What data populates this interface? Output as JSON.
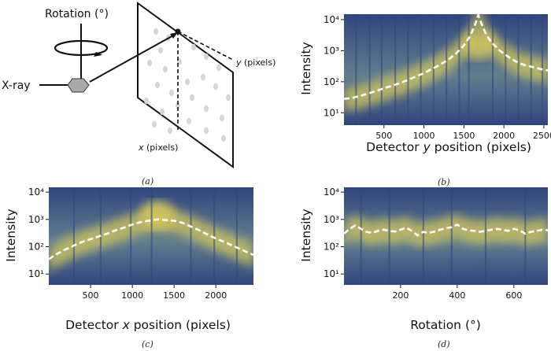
{
  "schematic": {
    "rotation_label": "Rotation (°)",
    "xray_label": "X-ray",
    "x_label": "x (pixels)",
    "y_label": "y (pixels)"
  },
  "captions": {
    "a": "(a)",
    "b": "(b)",
    "c": "(c)",
    "d": "(d)"
  },
  "colors": {
    "heat_low": "#1f3477",
    "heat_mid": "#5a7a8a",
    "heat_high": "#e8d44d",
    "trend_line": "#ffffff"
  },
  "chart_data": [
    {
      "id": "b",
      "type": "heatmap",
      "xlabel": "Detector y position (pixels)",
      "xlabel_parts": [
        "Detector ",
        "y",
        " position (pixels)"
      ],
      "ylabel": "Intensity",
      "yscale": "log",
      "xlim": [
        0,
        2550
      ],
      "ylim": [
        4,
        15000
      ],
      "xticks": [
        500,
        1000,
        1500,
        2000,
        2500
      ],
      "yticks": [
        {
          "v": 10,
          "label": "10¹"
        },
        {
          "v": 100,
          "label": "10²"
        },
        {
          "v": 1000,
          "label": "10³"
        },
        {
          "v": 10000,
          "label": "10⁴"
        }
      ],
      "series": [
        {
          "style": "dashed-white",
          "x": [
            0,
            100,
            250,
            400,
            550,
            700,
            850,
            1000,
            1150,
            1300,
            1400,
            1500,
            1580,
            1640,
            1680,
            1720,
            1780,
            1850,
            1950,
            2050,
            2150,
            2250,
            2350,
            2450,
            2550
          ],
          "y": [
            28,
            30,
            38,
            50,
            68,
            90,
            130,
            190,
            300,
            500,
            800,
            1500,
            3000,
            7000,
            14000,
            7500,
            3200,
            1800,
            1000,
            650,
            450,
            350,
            300,
            260,
            230
          ]
        }
      ],
      "dark_columns": [
        150,
        320,
        470,
        640,
        800,
        960,
        1120,
        1280,
        1440,
        1560,
        1860,
        2020,
        2180,
        2340,
        2480
      ]
    },
    {
      "id": "c",
      "type": "heatmap",
      "xlabel": "Detector x position (pixels)",
      "xlabel_parts": [
        "Detector ",
        "x",
        " position (pixels)"
      ],
      "ylabel": "Intensity",
      "yscale": "log",
      "xlim": [
        0,
        2450
      ],
      "ylim": [
        4,
        15000
      ],
      "xticks": [
        500,
        1000,
        1500,
        2000
      ],
      "yticks": [
        {
          "v": 10,
          "label": "10¹"
        },
        {
          "v": 100,
          "label": "10²"
        },
        {
          "v": 1000,
          "label": "10³"
        },
        {
          "v": 10000,
          "label": "10⁴"
        }
      ],
      "series": [
        {
          "style": "dashed-white",
          "x": [
            0,
            100,
            200,
            300,
            400,
            500,
            600,
            700,
            800,
            900,
            1000,
            1100,
            1200,
            1300,
            1400,
            1500,
            1600,
            1700,
            1800,
            1900,
            2000,
            2100,
            2200,
            2300,
            2450
          ],
          "y": [
            35,
            55,
            80,
            110,
            150,
            190,
            240,
            300,
            400,
            500,
            650,
            800,
            900,
            1000,
            950,
            900,
            750,
            550,
            400,
            280,
            200,
            150,
            110,
            80,
            50
          ]
        }
      ],
      "dark_columns": [
        300,
        620,
        980,
        1230,
        1700,
        1980,
        2250
      ]
    },
    {
      "id": "d",
      "type": "heatmap",
      "xlabel": "Rotation (°)",
      "xlabel_parts": [
        "Rotation (°)"
      ],
      "ylabel": "Intensity",
      "yscale": "log",
      "xlim": [
        0,
        720
      ],
      "ylim": [
        4,
        15000
      ],
      "xticks": [
        200,
        400,
        600
      ],
      "yticks": [
        {
          "v": 10,
          "label": "10¹"
        },
        {
          "v": 100,
          "label": "10²"
        },
        {
          "v": 1000,
          "label": "10³"
        },
        {
          "v": 10000,
          "label": "10⁴"
        }
      ],
      "series": [
        {
          "style": "dashed-white",
          "x": [
            0,
            20,
            40,
            60,
            80,
            100,
            120,
            140,
            160,
            180,
            200,
            220,
            240,
            260,
            280,
            300,
            320,
            340,
            360,
            380,
            400,
            420,
            440,
            460,
            480,
            500,
            520,
            540,
            560,
            580,
            600,
            620,
            640,
            660,
            680,
            700,
            720
          ],
          "y": [
            300,
            450,
            600,
            450,
            350,
            320,
            380,
            420,
            380,
            360,
            420,
            500,
            380,
            260,
            350,
            320,
            360,
            420,
            480,
            520,
            650,
            450,
            400,
            380,
            350,
            380,
            420,
            450,
            420,
            380,
            450,
            400,
            300,
            350,
            380,
            420,
            400
          ]
        }
      ],
      "dark_columns": [
        60,
        160,
        280,
        380,
        500,
        640
      ]
    }
  ]
}
